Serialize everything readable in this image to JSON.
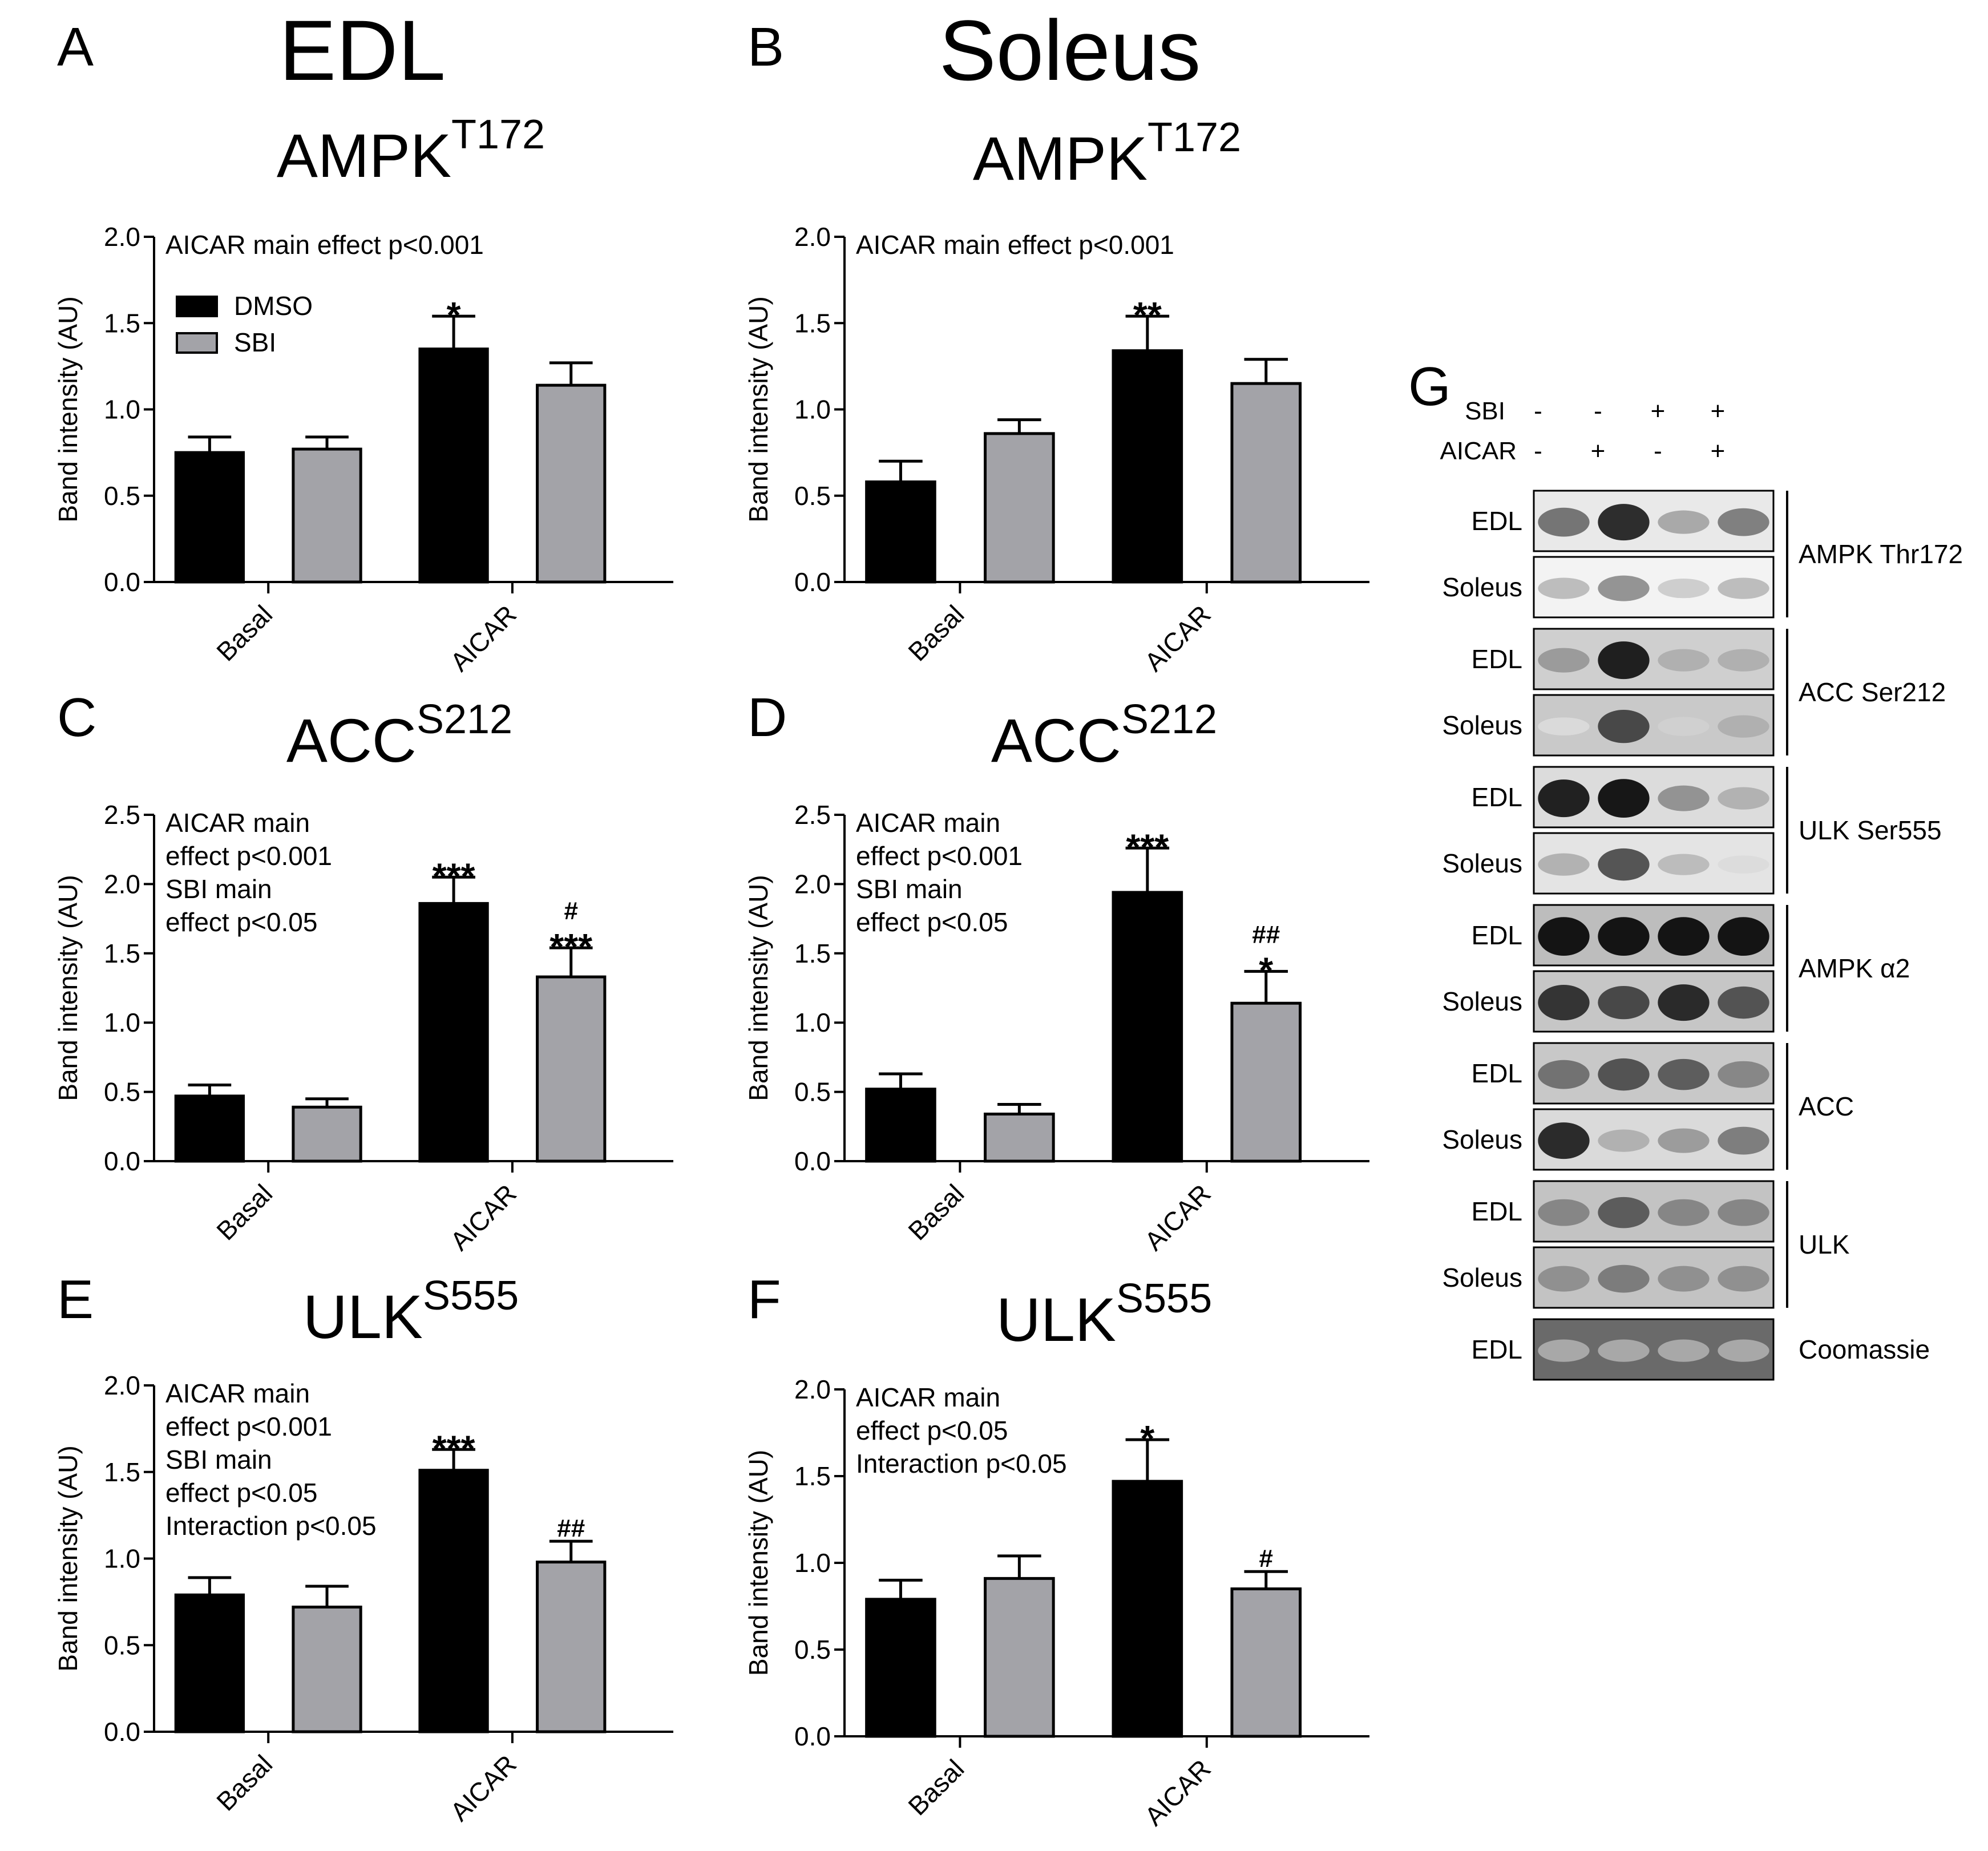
{
  "panel_letters": {
    "A": "A",
    "B": "B",
    "C": "C",
    "D": "D",
    "E": "E",
    "F": "F",
    "G": "G"
  },
  "tissue_titles": {
    "A": "EDL",
    "B": "Soleus"
  },
  "legend": {
    "dmso": "DMSO",
    "sbi": "SBI"
  },
  "colors": {
    "dmso": "#000000",
    "sbi": "#a3a3a8"
  },
  "chart_data": [
    {
      "panel": "A",
      "type": "bar",
      "title": "AMPK",
      "title_sup": "T172",
      "ylabel": "Band intensity (AU)",
      "ylim": [
        0,
        2.0
      ],
      "yticks": [
        "0.0",
        "0.5",
        "1.0",
        "1.5",
        "2.0"
      ],
      "categories": [
        "Basal",
        "AICAR"
      ],
      "series": [
        {
          "name": "DMSO",
          "values": [
            0.75,
            1.35
          ],
          "errors": [
            0.09,
            0.19
          ],
          "labels": [
            "",
            "*"
          ]
        },
        {
          "name": "SBI",
          "values": [
            0.77,
            1.14
          ],
          "errors": [
            0.07,
            0.13
          ],
          "labels": [
            "",
            ""
          ]
        }
      ],
      "annotation": [
        "AICAR main effect p<0.001"
      ],
      "show_legend": true
    },
    {
      "panel": "B",
      "type": "bar",
      "title": "AMPK",
      "title_sup": "T172",
      "ylabel": "Band intensity (AU)",
      "ylim": [
        0,
        2.0
      ],
      "yticks": [
        "0.0",
        "0.5",
        "1.0",
        "1.5",
        "2.0"
      ],
      "categories": [
        "Basal",
        "AICAR"
      ],
      "series": [
        {
          "name": "DMSO",
          "values": [
            0.58,
            1.34
          ],
          "errors": [
            0.12,
            0.2
          ],
          "labels": [
            "",
            "**"
          ]
        },
        {
          "name": "SBI",
          "values": [
            0.86,
            1.15
          ],
          "errors": [
            0.08,
            0.14
          ],
          "labels": [
            "",
            ""
          ]
        }
      ],
      "annotation": [
        "AICAR main effect p<0.001"
      ],
      "show_legend": false
    },
    {
      "panel": "C",
      "type": "bar",
      "title": "ACC",
      "title_sup": "S212",
      "ylabel": "Band intensity (AU)",
      "ylim": [
        0,
        2.5
      ],
      "yticks": [
        "0.0",
        "0.5",
        "1.0",
        "1.5",
        "2.0",
        "2.5"
      ],
      "categories": [
        "Basal",
        "AICAR"
      ],
      "series": [
        {
          "name": "DMSO",
          "values": [
            0.47,
            1.86
          ],
          "errors": [
            0.08,
            0.19
          ],
          "labels": [
            "",
            "***"
          ]
        },
        {
          "name": "SBI",
          "values": [
            0.39,
            1.33
          ],
          "errors": [
            0.06,
            0.21
          ],
          "labels": [
            "",
            "***"
          ],
          "labels_top": [
            "",
            "#"
          ]
        }
      ],
      "annotation": [
        "AICAR main",
        "effect p<0.001",
        "SBI main",
        "effect p<0.05"
      ],
      "show_legend": false
    },
    {
      "panel": "D",
      "type": "bar",
      "title": "ACC",
      "title_sup": "S212",
      "ylabel": "Band intensity (AU)",
      "ylim": [
        0,
        2.5
      ],
      "yticks": [
        "0.0",
        "0.5",
        "1.0",
        "1.5",
        "2.0",
        "2.5"
      ],
      "categories": [
        "Basal",
        "AICAR"
      ],
      "series": [
        {
          "name": "DMSO",
          "values": [
            0.52,
            1.94
          ],
          "errors": [
            0.11,
            0.32
          ],
          "labels": [
            "",
            "***"
          ]
        },
        {
          "name": "SBI",
          "values": [
            0.34,
            1.14
          ],
          "errors": [
            0.07,
            0.23
          ],
          "labels": [
            "",
            "*"
          ],
          "labels_top": [
            "",
            "##"
          ]
        }
      ],
      "annotation": [
        "AICAR main",
        "effect p<0.001",
        "SBI main",
        "effect p<0.05"
      ],
      "show_legend": false
    },
    {
      "panel": "E",
      "type": "bar",
      "title": "ULK",
      "title_sup": "S555",
      "ylabel": "Band intensity (AU)",
      "ylim": [
        0,
        2.0
      ],
      "yticks": [
        "0.0",
        "0.5",
        "1.0",
        "1.5",
        "2.0"
      ],
      "categories": [
        "Basal",
        "AICAR"
      ],
      "series": [
        {
          "name": "DMSO",
          "values": [
            0.79,
            1.51
          ],
          "errors": [
            0.1,
            0.12
          ],
          "labels": [
            "",
            "***"
          ]
        },
        {
          "name": "SBI",
          "values": [
            0.72,
            0.98
          ],
          "errors": [
            0.12,
            0.12
          ],
          "labels": [
            "",
            "##"
          ]
        }
      ],
      "annotation": [
        "AICAR main",
        "effect p<0.001",
        "SBI main",
        "effect p<0.05",
        "Interaction p<0.05"
      ],
      "show_legend": false
    },
    {
      "panel": "F",
      "type": "bar",
      "title": "ULK",
      "title_sup": "S555",
      "ylabel": "Band intensity (AU)",
      "ylim": [
        0,
        2.0
      ],
      "yticks": [
        "0.0",
        "0.5",
        "1.0",
        "1.5",
        "2.0"
      ],
      "categories": [
        "Basal",
        "AICAR"
      ],
      "series": [
        {
          "name": "DMSO",
          "values": [
            0.79,
            1.47
          ],
          "errors": [
            0.11,
            0.24
          ],
          "labels": [
            "",
            "*"
          ]
        },
        {
          "name": "SBI",
          "values": [
            0.91,
            0.85
          ],
          "errors": [
            0.13,
            0.1
          ],
          "labels": [
            "",
            "#"
          ]
        }
      ],
      "annotation": [
        "AICAR main",
        "effect p<0.05",
        "Interaction p<0.05"
      ],
      "show_legend": false
    }
  ],
  "blot": {
    "treatment_rows": [
      {
        "label": "SBI",
        "signs": [
          "-",
          "-",
          "+",
          "+"
        ]
      },
      {
        "label": "AICAR",
        "signs": [
          "-",
          "+",
          "-",
          "+"
        ]
      }
    ],
    "groups": [
      {
        "name": "AMPK Thr172",
        "rows": [
          {
            "label": "EDL",
            "intensity": [
              0.55,
              0.9,
              0.3,
              0.5
            ],
            "bg": "#e9e9e9"
          },
          {
            "label": "Soleus",
            "intensity": [
              0.2,
              0.4,
              0.12,
              0.2
            ],
            "bg": "#f3f3f3"
          }
        ]
      },
      {
        "name": "ACC Ser212",
        "rows": [
          {
            "label": "EDL",
            "intensity": [
              0.35,
              0.95,
              0.25,
              0.25
            ],
            "bg": "#cfcfcf"
          },
          {
            "label": "Soleus",
            "intensity": [
              0.05,
              0.75,
              0.1,
              0.25
            ],
            "bg": "#c9c9c9"
          }
        ]
      },
      {
        "name": "ULK Ser555",
        "rows": [
          {
            "label": "EDL",
            "intensity": [
              0.95,
              1.0,
              0.4,
              0.25
            ],
            "bg": "#dcdcdc"
          },
          {
            "label": "Soleus",
            "intensity": [
              0.25,
              0.7,
              0.2,
              0.05
            ],
            "bg": "#e4e4e4"
          }
        ]
      },
      {
        "name": "AMPK α2",
        "rows": [
          {
            "label": "EDL",
            "intensity": [
              1.0,
              1.0,
              1.0,
              1.0
            ],
            "bg": "#bdbdbd"
          },
          {
            "label": "Soleus",
            "intensity": [
              0.85,
              0.75,
              0.9,
              0.7
            ],
            "bg": "#c6c6c6"
          }
        ]
      },
      {
        "name": "ACC",
        "rows": [
          {
            "label": "EDL",
            "intensity": [
              0.55,
              0.7,
              0.65,
              0.45
            ],
            "bg": "#c8c8c8"
          },
          {
            "label": "Soleus",
            "intensity": [
              0.9,
              0.25,
              0.35,
              0.5
            ],
            "bg": "#dadada"
          }
        ]
      },
      {
        "name": "ULK",
        "rows": [
          {
            "label": "EDL",
            "intensity": [
              0.45,
              0.65,
              0.45,
              0.45
            ],
            "bg": "#c3c3c3"
          },
          {
            "label": "Soleus",
            "intensity": [
              0.4,
              0.5,
              0.4,
              0.4
            ],
            "bg": "#c3c3c3"
          }
        ]
      },
      {
        "name": "Coomassie",
        "rows": [
          {
            "label": "EDL",
            "intensity": [
              0.25,
              0.25,
              0.25,
              0.25
            ],
            "bg": "#6a6a6a"
          }
        ]
      }
    ]
  }
}
